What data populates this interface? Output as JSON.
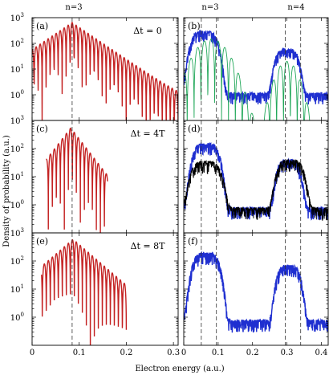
{
  "figure": {
    "ylabel": "Density of probability (a.u.)",
    "xlabel": "Electron energy (a.u.)",
    "top_markers": [
      "n=3",
      "n=3",
      "n=4"
    ]
  },
  "colors": {
    "red": "#c42222",
    "blue": "#1f2fd0",
    "green": "#22a85a",
    "black": "#000000"
  },
  "chart_data": [
    {
      "panel": "(a)",
      "type": "line",
      "annotation": "Δt = 0",
      "yscale": "log",
      "xlim": [
        0,
        0.31
      ],
      "ylim": [
        0.1,
        1000
      ],
      "xticks": [
        0,
        0.1,
        0.2,
        0.3
      ],
      "xticklabels": [
        "0",
        "0.1",
        "0.2",
        "0.3"
      ],
      "yticks": [
        1,
        10,
        100,
        1000
      ],
      "yticklabels": [
        "10^0",
        "10^1",
        "10^2",
        "10^3"
      ],
      "vlines": [
        0.085
      ],
      "series": [
        {
          "color": "red",
          "peak": [
            0.085,
            650
          ],
          "decay": 0.035,
          "floor": 0.3,
          "osc": 0.0085,
          "phase": 0,
          "xmin": 0.0,
          "xmax": 0.31
        }
      ]
    },
    {
      "panel": "(b)",
      "type": "line",
      "yscale": "log",
      "xlim": [
        0,
        0.42
      ],
      "ylim": [
        0.1,
        1000
      ],
      "xticks": [
        0,
        0.1,
        0.2,
        0.3,
        0.4
      ],
      "xticklabels": [
        "0",
        "0.1",
        "0.2",
        "0.3",
        "0.4"
      ],
      "yticks": [
        1,
        10,
        100,
        1000
      ],
      "yticklabels": [
        "",
        "",
        "",
        ""
      ],
      "vlines": [
        0.051,
        0.095,
        0.295,
        0.34
      ],
      "series": [
        {
          "color": "blue",
          "kind": "noisy",
          "peaks": [
            [
              0.06,
              300,
              0.04
            ],
            [
              0.3,
              60,
              0.035
            ]
          ],
          "floor": 1.2,
          "seed": 3
        },
        {
          "color": "green",
          "kind": "fringes",
          "peaks": [
            [
              0.08,
              150,
              0.045
            ],
            [
              0.3,
              20,
              0.03
            ]
          ],
          "osc": 0.02,
          "xmin": 0.0,
          "xmax": 0.37
        }
      ]
    },
    {
      "panel": "(c)",
      "type": "line",
      "annotation": "Δt = 4T",
      "yscale": "log",
      "xlim": [
        0,
        0.31
      ],
      "ylim": [
        0.1,
        1000
      ],
      "xticks": [
        0,
        0.1,
        0.2,
        0.3
      ],
      "xticklabels": [
        "0",
        "0.1",
        "0.2",
        "0.3"
      ],
      "yticks": [
        1,
        10,
        100,
        1000
      ],
      "yticklabels": [
        "10^0",
        "10^1",
        "10^2",
        "10^3"
      ],
      "vlines": [
        0.085
      ],
      "series": [
        {
          "color": "red",
          "peak": [
            0.082,
            550
          ],
          "decay": 0.02,
          "floor": 0.12,
          "osc": 0.0085,
          "phase": 0.3,
          "xmin": 0.03,
          "xmax": 0.16
        }
      ]
    },
    {
      "panel": "(d)",
      "type": "line",
      "yscale": "log",
      "xlim": [
        0,
        0.42
      ],
      "ylim": [
        0.1,
        1000
      ],
      "xticks": [
        0,
        0.1,
        0.2,
        0.3,
        0.4
      ],
      "xticklabels": [
        "0",
        "0.1",
        "0.2",
        "0.3",
        "0.4"
      ],
      "yticks": [
        1,
        10,
        100,
        1000
      ],
      "yticklabels": [
        "",
        "",
        "",
        ""
      ],
      "vlines": [
        0.051,
        0.095,
        0.295,
        0.34
      ],
      "series": [
        {
          "color": "blue",
          "kind": "noisy",
          "peaks": [
            [
              0.065,
              150,
              0.04
            ],
            [
              0.305,
              40,
              0.035
            ]
          ],
          "floor": 0.8,
          "seed": 7
        },
        {
          "color": "black",
          "kind": "noisy",
          "peaks": [
            [
              0.065,
              35,
              0.045
            ],
            [
              0.31,
              40,
              0.04
            ]
          ],
          "floor": 0.8,
          "seed": 11
        }
      ]
    },
    {
      "panel": "(e)",
      "type": "line",
      "annotation": "Δt = 8T",
      "yscale": "log",
      "xlim": [
        0,
        0.31
      ],
      "ylim": [
        0.1,
        1000
      ],
      "xticks": [
        0,
        0.1,
        0.2,
        0.3
      ],
      "xticklabels": [
        "0",
        "0.1",
        "0.2",
        "0.3"
      ],
      "yticks": [
        1,
        10,
        100,
        1000
      ],
      "yticklabels": [
        "10^0",
        "10^1",
        "10^2",
        "10^3"
      ],
      "vlines": [
        0.085
      ],
      "series": [
        {
          "color": "red",
          "peak": [
            0.087,
            600
          ],
          "decay": 0.03,
          "floor": 0.15,
          "osc": 0.0085,
          "phase": 0.6,
          "xmin": 0.02,
          "xmax": 0.2
        }
      ]
    },
    {
      "panel": "(f)",
      "type": "line",
      "yscale": "log",
      "xlim": [
        0,
        0.42
      ],
      "ylim": [
        0.1,
        1000
      ],
      "xticks": [
        0,
        0.1,
        0.2,
        0.3,
        0.4
      ],
      "xticklabels": [
        "0",
        "0.1",
        "0.2",
        "0.3",
        "0.4"
      ],
      "yticks": [
        1,
        10,
        100,
        1000
      ],
      "yticklabels": [
        "",
        "",
        "",
        ""
      ],
      "vlines": [
        0.051,
        0.095,
        0.295,
        0.34
      ],
      "series": [
        {
          "color": "blue",
          "kind": "noisy",
          "peaks": [
            [
              0.065,
              200,
              0.04
            ],
            [
              0.305,
              70,
              0.035
            ]
          ],
          "floor": 0.8,
          "seed": 19
        }
      ]
    }
  ]
}
